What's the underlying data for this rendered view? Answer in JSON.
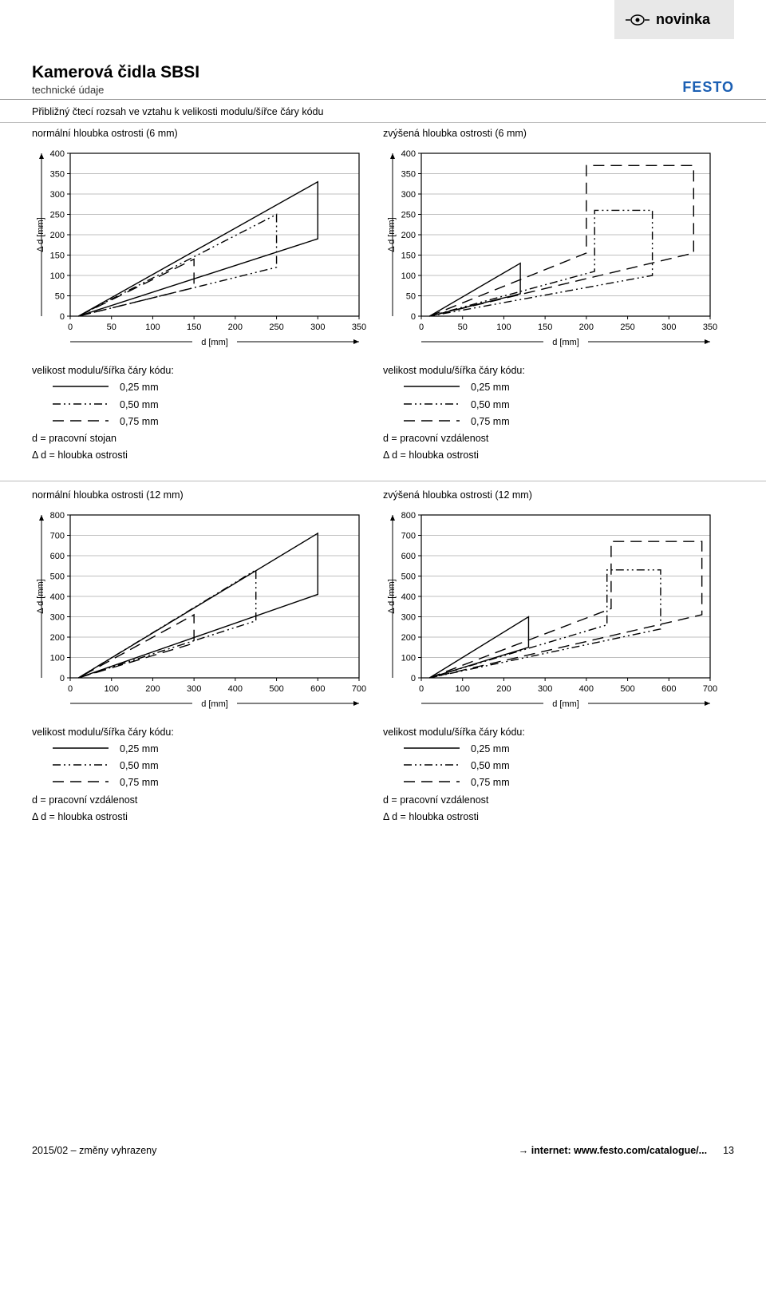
{
  "header": {
    "novinka": "novinka",
    "title": "Kamerová čidla SBSI",
    "subtitle": "technické údaje",
    "brand": "FESTO"
  },
  "section_title": "Přibližný čtecí rozsah ve vztahu k velikosti modulu/šířce čáry kódu",
  "charts": {
    "top_left": {
      "title": "normální hloubka ostrosti (6 mm)",
      "ylabel": "Δ d [mm]",
      "xlabel": "d [mm]",
      "yticks": [
        0,
        50,
        100,
        150,
        200,
        250,
        300,
        350,
        400
      ],
      "xticks": [
        0,
        50,
        100,
        150,
        200,
        250,
        300,
        350
      ],
      "ylim": [
        0,
        400
      ],
      "xlim": [
        0,
        350
      ],
      "series": {
        "s025": {
          "style": "solid",
          "pts": [
            [
              10,
              0
            ],
            [
              300,
              190
            ],
            [
              300,
              330
            ],
            [
              10,
              0
            ]
          ]
        },
        "s050": {
          "style": "dashdotdot",
          "pts": [
            [
              10,
              0
            ],
            [
              250,
              120
            ],
            [
              250,
              250
            ],
            [
              10,
              0
            ]
          ]
        },
        "s075": {
          "style": "longdash",
          "pts": [
            [
              10,
              0
            ],
            [
              150,
              70
            ],
            [
              150,
              140
            ],
            [
              10,
              0
            ]
          ]
        }
      }
    },
    "top_right": {
      "title": "zvýšená hloubka ostrosti (6 mm)",
      "ylabel": "Δ d [mm]",
      "xlabel": "d [mm]",
      "yticks": [
        0,
        50,
        100,
        150,
        200,
        250,
        300,
        350,
        400
      ],
      "xticks": [
        0,
        50,
        100,
        150,
        200,
        250,
        300,
        350
      ],
      "ylim": [
        0,
        400
      ],
      "xlim": [
        0,
        350
      ],
      "series": {
        "s025": {
          "style": "solid",
          "pts": [
            [
              10,
              0
            ],
            [
              120,
              55
            ],
            [
              120,
              130
            ],
            [
              10,
              0
            ]
          ]
        },
        "s050": {
          "style": "dashdotdot",
          "pts": [
            [
              10,
              0
            ],
            [
              210,
              110
            ],
            [
              210,
              260
            ],
            [
              280,
              260
            ],
            [
              280,
              100
            ],
            [
              10,
              0
            ]
          ]
        },
        "s075": {
          "style": "longdash",
          "pts": [
            [
              10,
              0
            ],
            [
              200,
              155
            ],
            [
              200,
              370
            ],
            [
              330,
              370
            ],
            [
              330,
              155
            ],
            [
              10,
              0
            ]
          ]
        }
      }
    },
    "bot_left": {
      "title": "normální hloubka ostrosti (12 mm)",
      "ylabel": "Δ d [mm]",
      "xlabel": "d [mm]",
      "yticks": [
        0,
        100,
        200,
        300,
        400,
        500,
        600,
        700,
        800
      ],
      "xticks": [
        0,
        100,
        200,
        300,
        400,
        500,
        600,
        700
      ],
      "ylim": [
        0,
        800
      ],
      "xlim": [
        0,
        700
      ],
      "series": {
        "s025": {
          "style": "solid",
          "pts": [
            [
              20,
              0
            ],
            [
              600,
              410
            ],
            [
              600,
              710
            ],
            [
              20,
              0
            ]
          ]
        },
        "s050": {
          "style": "dashdotdot",
          "pts": [
            [
              20,
              0
            ],
            [
              450,
              280
            ],
            [
              450,
              530
            ],
            [
              20,
              0
            ]
          ]
        },
        "s075": {
          "style": "longdash",
          "pts": [
            [
              20,
              0
            ],
            [
              300,
              170
            ],
            [
              300,
              310
            ],
            [
              20,
              0
            ]
          ]
        }
      }
    },
    "bot_right": {
      "title": "zvýšená hloubka ostrosti (12 mm)",
      "ylabel": "Δ d [mm]",
      "xlabel": "d [mm]",
      "yticks": [
        0,
        100,
        200,
        300,
        400,
        500,
        600,
        700,
        800
      ],
      "xticks": [
        0,
        100,
        200,
        300,
        400,
        500,
        600,
        700
      ],
      "ylim": [
        0,
        800
      ],
      "xlim": [
        0,
        700
      ],
      "series": {
        "s025": {
          "style": "solid",
          "pts": [
            [
              20,
              0
            ],
            [
              260,
              150
            ],
            [
              260,
              300
            ],
            [
              20,
              0
            ]
          ]
        },
        "s050": {
          "style": "dashdotdot",
          "pts": [
            [
              20,
              0
            ],
            [
              450,
              260
            ],
            [
              450,
              530
            ],
            [
              580,
              530
            ],
            [
              580,
              240
            ],
            [
              20,
              0
            ]
          ]
        },
        "s075": {
          "style": "longdash",
          "pts": [
            [
              20,
              0
            ],
            [
              460,
              340
            ],
            [
              460,
              670
            ],
            [
              680,
              670
            ],
            [
              680,
              310
            ],
            [
              20,
              0
            ]
          ]
        }
      }
    }
  },
  "legends": {
    "top_left": {
      "heading": "velikost modulu/šířka čáry kódu:",
      "items": [
        "0,25 mm",
        "0,50 mm",
        "0,75 mm"
      ],
      "d_line": "d = pracovní stojan",
      "dd_line": "Δ d = hloubka ostrosti"
    },
    "top_right": {
      "heading": "velikost modulu/šířka čáry kódu:",
      "items": [
        "0,25 mm",
        "0,50 mm",
        "0,75 mm"
      ],
      "d_line": "d = pracovní vzdálenost",
      "dd_line": "Δ d = hloubka ostrosti"
    },
    "bot_left": {
      "heading": "velikost modulu/šířka čáry kódu:",
      "items": [
        "0,25 mm",
        "0,50 mm",
        "0,75 mm"
      ],
      "d_line": "d = pracovní vzdálenost",
      "dd_line": "Δ d = hloubka ostrosti"
    },
    "bot_right": {
      "heading": "velikost modulu/šířka čáry kódu:",
      "items": [
        "0,25 mm",
        "0,50 mm",
        "0,75 mm"
      ],
      "d_line": "d = pracovní vzdálenost",
      "dd_line": "Δ d = hloubka ostrosti"
    }
  },
  "footer": {
    "left": "2015/02 – změny vyhrazeny",
    "right_prefix": "→",
    "right_bold": "internet: www.festo.com/catalogue/...",
    "page": "13"
  },
  "style": {
    "grid_color": "#bfbfbf",
    "axis_color": "#000000",
    "line_color": "#000000",
    "tick_fontsize": 11,
    "label_fontsize": 11,
    "plot_bg": "#ffffff"
  }
}
